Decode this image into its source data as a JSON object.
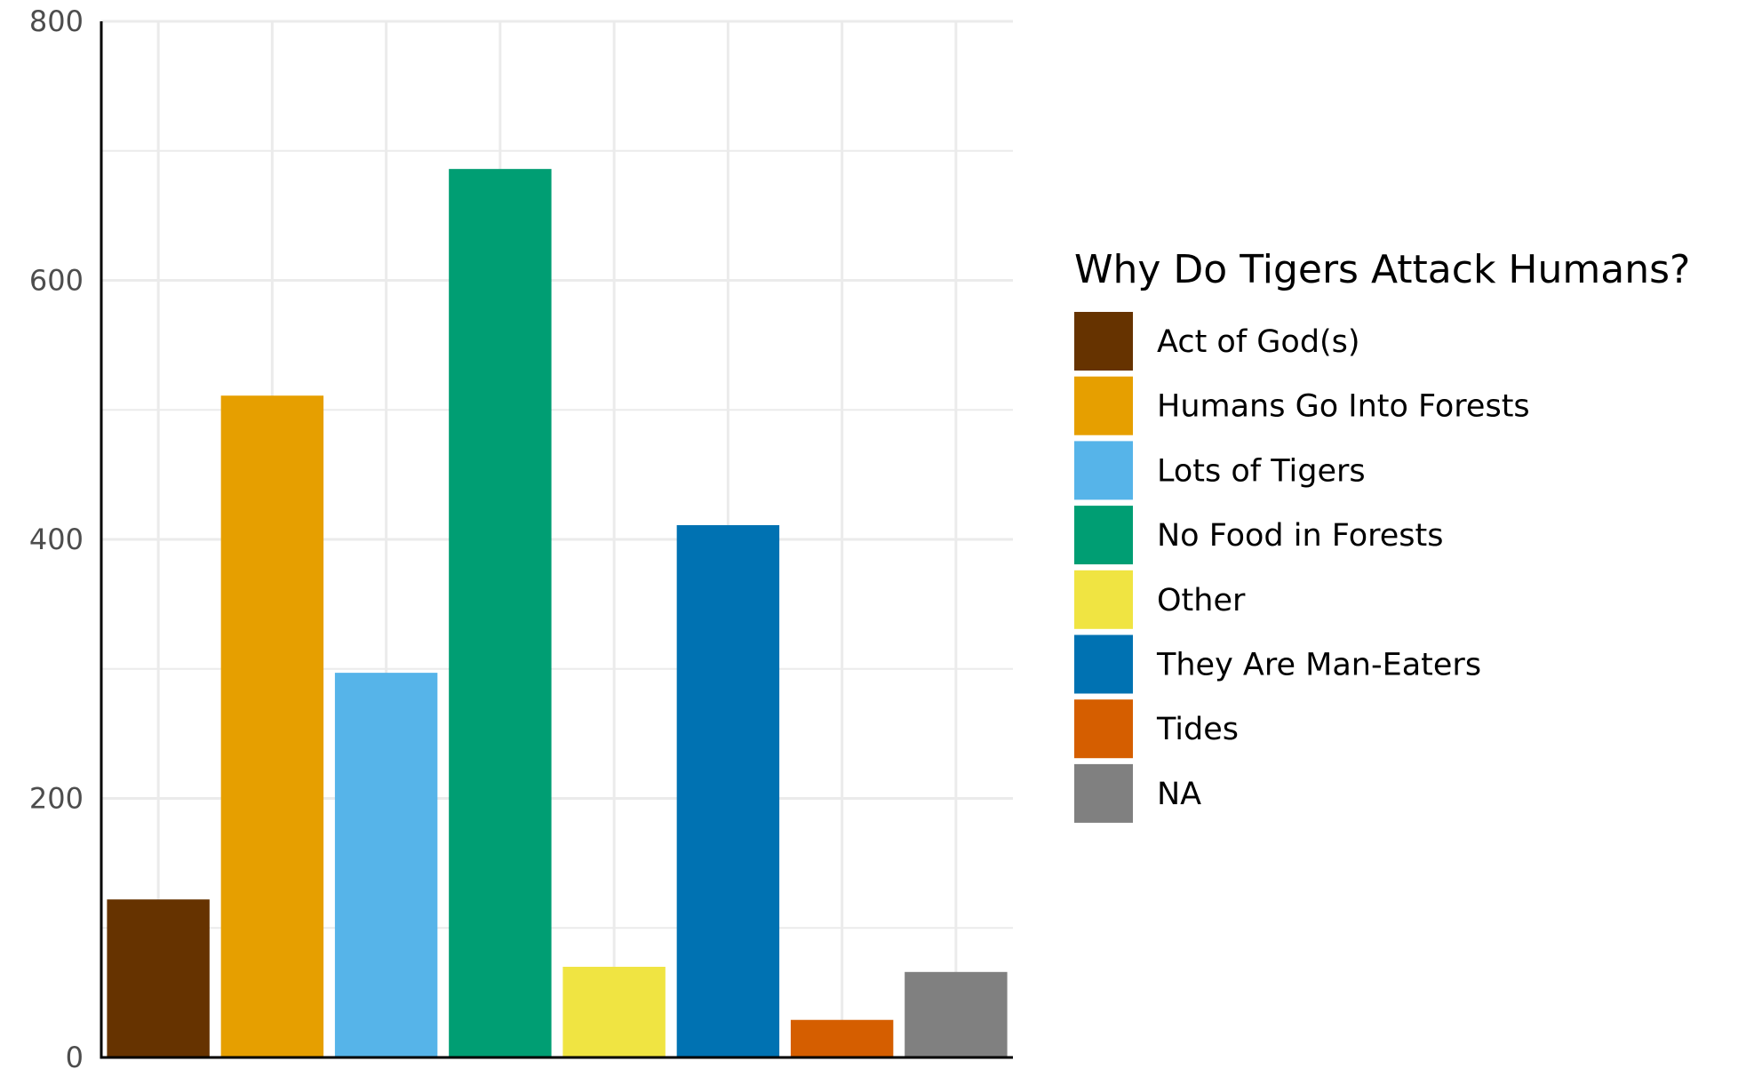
{
  "chart_data": {
    "type": "bar",
    "title": "",
    "xlabel": "",
    "ylabel": "",
    "ylim": [
      0,
      800
    ],
    "yticks": [
      0,
      200,
      400,
      600,
      800
    ],
    "grid": true,
    "legend_position": "right",
    "legend_title": "Why Do Tigers Attack Humans?",
    "categories": [
      "Act of God(s)",
      "Humans Go Into Forests",
      "Lots of Tigers",
      "No Food in Forests",
      "Other",
      "They Are Man-Eaters",
      "Tides",
      "NA"
    ],
    "values": [
      122,
      511,
      297,
      686,
      70,
      411,
      29,
      66
    ],
    "colors": [
      "#663300",
      "#E69F00",
      "#56B4E9",
      "#009E73",
      "#F0E442",
      "#0072B2",
      "#D55E00",
      "#808080"
    ]
  }
}
